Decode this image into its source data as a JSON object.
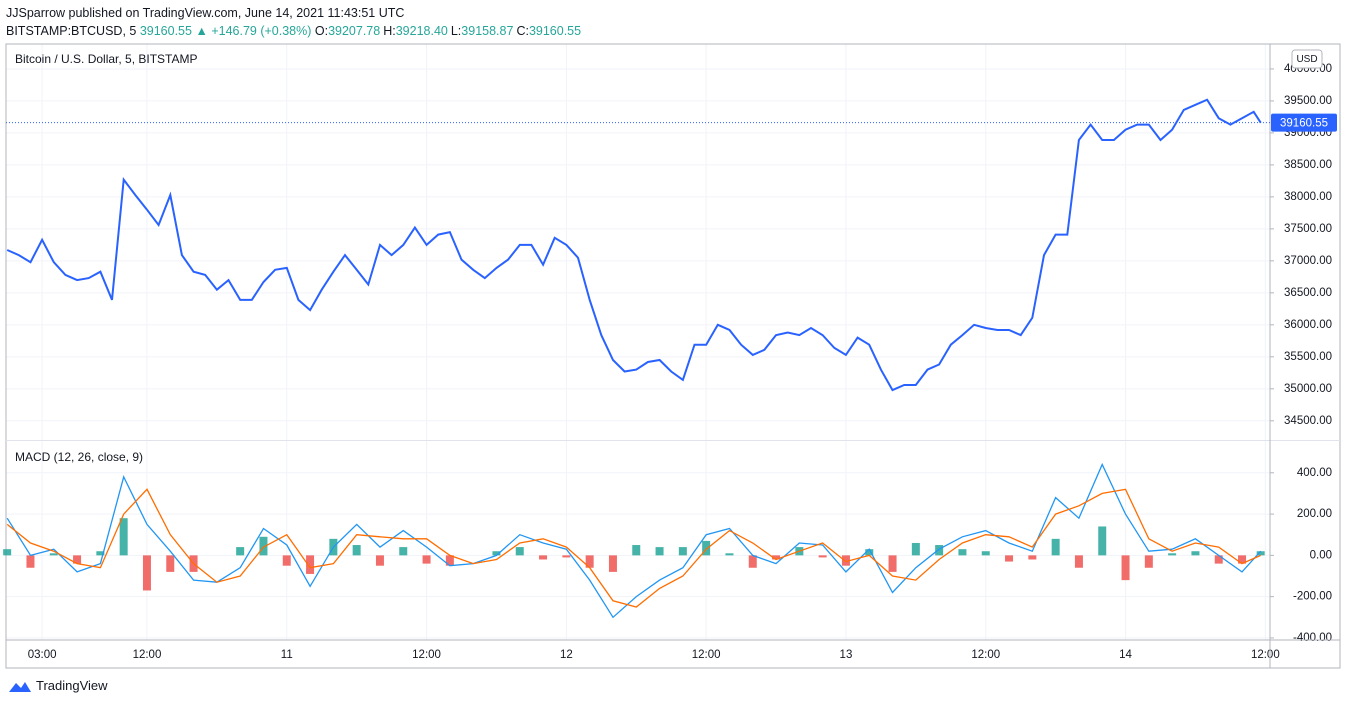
{
  "header": {
    "byline": "JJSparrow published on TradingView.com, June 14, 2021 11:43:51 UTC",
    "symbol": "BITSTAMP:BTCUSD, 5",
    "last": "39160.55",
    "arrow": "▲",
    "change": "+146.79 (+0.38%)",
    "ohlc": [
      {
        "label": "O:",
        "value": "39207.78"
      },
      {
        "label": "H:",
        "value": "39218.40"
      },
      {
        "label": "L:",
        "value": "39158.87"
      },
      {
        "label": "C:",
        "value": "39160.55"
      }
    ]
  },
  "footer": {
    "brand": "TradingView"
  },
  "chart_data": [
    {
      "type": "line",
      "title": "Bitcoin / U.S. Dollar, 5, BITSTAMP",
      "ylabel": "USD",
      "color": "#2962ff",
      "x": [
        0,
        1,
        2,
        3,
        4,
        5,
        6,
        7,
        8,
        9,
        10,
        11,
        12,
        13,
        14,
        15,
        16,
        17,
        18,
        19,
        20,
        21,
        22,
        23,
        24,
        25,
        26,
        27,
        28,
        29,
        30,
        31,
        32,
        33,
        34,
        35,
        36,
        37,
        38,
        39,
        40,
        41,
        42,
        43,
        44,
        45,
        46,
        47,
        48,
        49,
        50,
        51,
        52,
        53,
        54,
        55,
        56,
        57,
        58,
        59,
        60,
        61,
        62,
        63,
        64,
        65,
        66,
        67,
        68,
        69,
        70,
        71,
        72,
        73,
        74,
        75,
        76,
        77,
        78,
        79,
        80,
        81,
        82,
        83,
        84,
        85,
        86,
        87,
        88,
        89,
        90,
        91,
        92,
        93,
        94,
        95,
        96,
        97,
        98,
        99,
        100,
        101,
        102,
        103,
        104,
        105,
        106,
        107,
        107.6
      ],
      "values": [
        37170,
        37090,
        36980,
        37330,
        36980,
        36780,
        36700,
        36730,
        36830,
        36390,
        38270,
        38030,
        37800,
        37560,
        38030,
        37090,
        36830,
        36780,
        36550,
        36700,
        36390,
        36390,
        36670,
        36860,
        36890,
        36390,
        36230,
        36550,
        36830,
        37090,
        36860,
        36630,
        37250,
        37090,
        37250,
        37520,
        37250,
        37410,
        37450,
        37020,
        36860,
        36730,
        36890,
        37020,
        37250,
        37250,
        36940,
        37360,
        37250,
        37050,
        36390,
        35840,
        35450,
        35270,
        35300,
        35420,
        35450,
        35270,
        35140,
        35690,
        35690,
        36000,
        35920,
        35690,
        35530,
        35610,
        35840,
        35880,
        35840,
        35950,
        35840,
        35640,
        35530,
        35800,
        35690,
        35300,
        34980,
        35060,
        35060,
        35300,
        35380,
        35690,
        35840,
        36000,
        35950,
        35920,
        35920,
        35840,
        36110,
        37090,
        37410,
        37410,
        38890,
        39130,
        38890,
        38890,
        39050,
        39130,
        39130,
        38890,
        39050,
        39360,
        39440,
        39520,
        39230,
        39130,
        39230,
        39330,
        39160.55
      ],
      "xlim": [
        -0.1,
        108.4
      ],
      "ylim": [
        34200,
        40390
      ],
      "yticks": [
        {
          "value": 34500,
          "label": "34500.00"
        },
        {
          "value": 35000,
          "label": "35000.00"
        },
        {
          "value": 35500,
          "label": "35500.00"
        },
        {
          "value": 36000,
          "label": "36000.00"
        },
        {
          "value": 36500,
          "label": "36500.00"
        },
        {
          "value": 37000,
          "label": "37000.00"
        },
        {
          "value": 37500,
          "label": "37500.00"
        },
        {
          "value": 38000,
          "label": "38000.00"
        },
        {
          "value": 38500,
          "label": "38500.00"
        },
        {
          "value": 39000,
          "label": "39000.00"
        },
        {
          "value": 39500,
          "label": "39500.00"
        },
        {
          "value": 40000,
          "label": "40000.00"
        }
      ],
      "grid": true
    },
    {
      "type": "macd",
      "title": "MACD (12, 26, close, 9)",
      "x": [
        0,
        2,
        4,
        6,
        8,
        10,
        12,
        14,
        16,
        18,
        20,
        22,
        24,
        26,
        28,
        30,
        32,
        34,
        36,
        38,
        40,
        42,
        44,
        46,
        48,
        50,
        52,
        54,
        56,
        58,
        60,
        62,
        64,
        66,
        68,
        70,
        72,
        74,
        76,
        78,
        80,
        82,
        84,
        86,
        88,
        90,
        92,
        94,
        96,
        98,
        100,
        102,
        104,
        106,
        107.6
      ],
      "lines": [
        {
          "color": "#2196f3",
          "values": [
            180,
            0,
            30,
            -80,
            -40,
            380,
            150,
            20,
            -120,
            -130,
            -60,
            130,
            50,
            -150,
            40,
            150,
            40,
            120,
            40,
            -50,
            -40,
            0,
            100,
            60,
            30,
            -120,
            -300,
            -200,
            -120,
            -60,
            100,
            130,
            0,
            -40,
            60,
            50,
            -80,
            30,
            -180,
            -60,
            30,
            90,
            120,
            60,
            20,
            280,
            180,
            440,
            200,
            20,
            30,
            80,
            0,
            -80,
            20
          ]
        },
        {
          "color": "#ff6d00",
          "values": [
            150,
            60,
            20,
            -40,
            -60,
            200,
            320,
            100,
            -40,
            -130,
            -100,
            40,
            100,
            -60,
            -40,
            100,
            90,
            80,
            80,
            0,
            -40,
            -20,
            60,
            80,
            40,
            -60,
            -220,
            -250,
            -160,
            -100,
            30,
            120,
            60,
            -20,
            20,
            60,
            -30,
            0,
            -100,
            -120,
            -20,
            60,
            100,
            90,
            40,
            200,
            240,
            300,
            320,
            80,
            20,
            60,
            40,
            -40,
            0
          ]
        }
      ],
      "histogram": {
        "up_color": "#26a69a",
        "down_color": "#ef5350",
        "values": [
          30,
          -60,
          10,
          -40,
          20,
          180,
          -170,
          -80,
          -80,
          0,
          40,
          90,
          -50,
          -90,
          80,
          50,
          -50,
          40,
          -40,
          -50,
          0,
          20,
          40,
          -20,
          -10,
          -60,
          -80,
          50,
          40,
          40,
          70,
          10,
          -60,
          -20,
          40,
          -10,
          -50,
          30,
          -80,
          60,
          50,
          30,
          20,
          -30,
          -20,
          80,
          -60,
          140,
          -120,
          -60,
          10,
          20,
          -40,
          -40,
          20
        ]
      },
      "xlim": [
        -0.1,
        108.4
      ],
      "ylim": [
        -410,
        554
      ],
      "yticks": [
        {
          "value": -400,
          "label": "-400.00"
        },
        {
          "value": -200,
          "label": "-200.00"
        },
        {
          "value": 0,
          "label": "0.00"
        },
        {
          "value": 200,
          "label": "200.00"
        },
        {
          "value": 400,
          "label": "400.00"
        }
      ],
      "xticks": [
        {
          "value": 3,
          "label": "03:00"
        },
        {
          "value": 12,
          "label": "12:00"
        },
        {
          "value": 24,
          "label": "11"
        },
        {
          "value": 36,
          "label": "12:00"
        },
        {
          "value": 48,
          "label": "12"
        },
        {
          "value": 60,
          "label": "12:00"
        },
        {
          "value": 72,
          "label": "13"
        },
        {
          "value": 84,
          "label": "12:00"
        },
        {
          "value": 96,
          "label": "14"
        },
        {
          "value": 108,
          "label": "12:00"
        }
      ],
      "grid": true
    }
  ]
}
